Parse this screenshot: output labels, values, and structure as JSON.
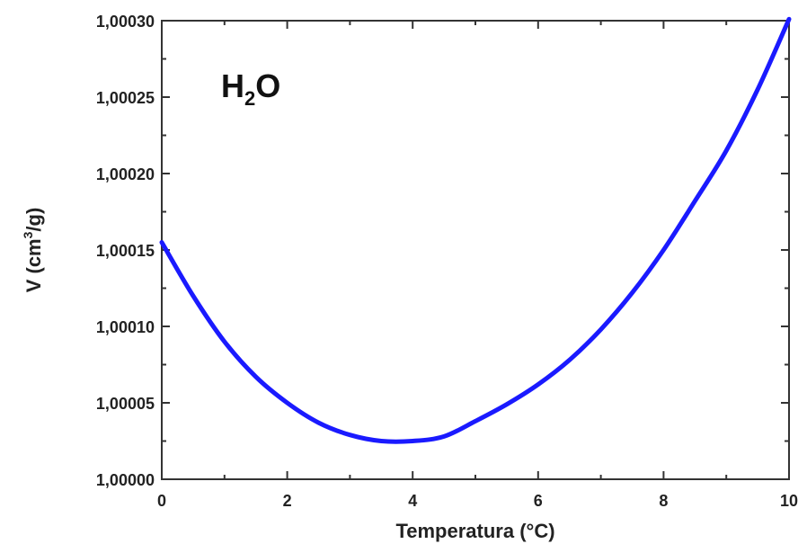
{
  "chart_data": {
    "type": "line",
    "title": "",
    "xlabel": "Temperatura (°C)",
    "ylabel": {
      "prefix": "V (cm",
      "superscript": "3",
      "suffix": "/g)"
    },
    "xlim": [
      0,
      10
    ],
    "ylim": [
      1.0,
      1.0003
    ],
    "x_ticks": [
      0,
      2,
      4,
      6,
      8,
      10
    ],
    "x_tick_labels": [
      "0",
      "2",
      "4",
      "6",
      "8",
      "10"
    ],
    "y_ticks": [
      1.0,
      1.00005,
      1.0001,
      1.00015,
      1.0002,
      1.00025,
      1.0003
    ],
    "y_tick_labels": [
      "1,00000",
      "1,00005",
      "1,00010",
      "1,00015",
      "1,00020",
      "1,00025",
      "1,00030"
    ],
    "grid": false,
    "annotation": {
      "base": "H",
      "subscript": "2",
      "tail": "O"
    },
    "series": [
      {
        "color": "#1a1aff",
        "x": [
          0,
          0.5,
          1,
          1.5,
          2,
          2.5,
          3,
          3.5,
          4,
          4.5,
          5,
          5.5,
          6,
          6.5,
          7,
          7.5,
          8,
          8.5,
          9,
          9.5,
          10
        ],
        "y": [
          1.000155,
          1.00012,
          1.00009,
          1.000067,
          1.00005,
          1.000037,
          1.000029,
          1.000025,
          1.000025,
          1.000028,
          1.000038,
          1.000049,
          1.000062,
          1.000078,
          1.000098,
          1.000122,
          1.00015,
          1.000182,
          1.000215,
          1.000255,
          1.000301
        ]
      }
    ]
  }
}
